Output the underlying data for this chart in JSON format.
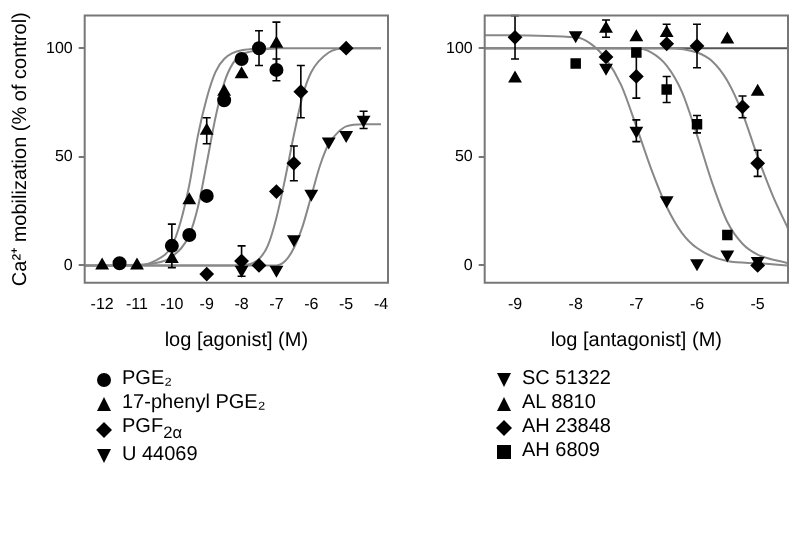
{
  "chart_data": [
    {
      "type": "scatter",
      "xlabel": "log [agonist] (M)",
      "ylabel": "Ca²⁺ mobilization (% of control)",
      "xlim": [
        -12.5,
        -3.8
      ],
      "xticks": [
        -12,
        -11,
        -10,
        -9,
        -8,
        -7,
        -6,
        -5,
        -4
      ],
      "ylim": [
        -8,
        115
      ],
      "yticks": [
        0,
        50,
        100
      ],
      "grid": false,
      "legend": "bottom",
      "series": [
        {
          "name": "PGE₂",
          "color": "#000000",
          "marker": "circle",
          "x": [
            -11.5,
            -10,
            -9.5,
            -9,
            -8.5,
            -8,
            -7.5,
            -7
          ],
          "values": [
            1,
            9,
            14,
            32,
            76,
            95,
            100,
            90
          ],
          "errors": [
            null,
            10,
            null,
            null,
            null,
            null,
            8,
            5
          ]
        },
        {
          "name": "17-phenyl PGE₂",
          "color": "#000000",
          "marker": "triangle",
          "x": [
            -12,
            -11,
            -10,
            -9.5,
            -9,
            -8.5,
            -8,
            -7
          ],
          "values": [
            0,
            0,
            3,
            30,
            62,
            80,
            88,
            102
          ],
          "errors": [
            null,
            null,
            null,
            null,
            6,
            null,
            null,
            10
          ]
        },
        {
          "name": "PGF$_{2α}$",
          "color": "#000000",
          "marker": "diamond",
          "x": [
            -9,
            -8,
            -7.5,
            -7,
            -6.5,
            -6.3,
            -5
          ],
          "values": [
            -4,
            2,
            0,
            34,
            47,
            80,
            100
          ],
          "errors": [
            null,
            7,
            null,
            null,
            8,
            12,
            null
          ]
        },
        {
          "name": "U 44069",
          "color": "#000000",
          "marker": "triangle-down",
          "x": [
            -8,
            -7,
            -6.5,
            -6,
            -5.5,
            -5,
            -4.5
          ],
          "values": [
            -2,
            -2,
            12,
            33,
            57,
            60,
            67
          ],
          "errors": [
            null,
            null,
            null,
            null,
            null,
            null,
            4
          ]
        },
        {
          "type": "line",
          "color": "#888888",
          "marker": "none",
          "x": [
            -12.5,
            -11,
            -10.5,
            -10,
            -9.75,
            -9.5,
            -9.25,
            -9,
            -8.75,
            -8.5,
            -8,
            -7
          ],
          "values": [
            0,
            0,
            2,
            9,
            20,
            37,
            60,
            77,
            89,
            95,
            99,
            100
          ]
        },
        {
          "type": "line",
          "color": "#888888",
          "marker": "none",
          "x": [
            -11.5,
            -10.5,
            -10,
            -9.5,
            -9.25,
            -9,
            -8.75,
            -8.5,
            -8.25,
            -8,
            -7.5,
            -7,
            -4
          ],
          "values": [
            0,
            1,
            4,
            14,
            27,
            47,
            68,
            84,
            93,
            97,
            99,
            100,
            100
          ]
        },
        {
          "type": "line",
          "color": "#888888",
          "marker": "none",
          "x": [
            -12.5,
            -8,
            -7.5,
            -7.25,
            -7,
            -6.75,
            -6.5,
            -6.25,
            -6,
            -5.5,
            -5,
            -4
          ],
          "values": [
            0,
            0,
            3,
            9,
            22,
            40,
            60,
            78,
            89,
            98,
            100,
            100
          ]
        },
        {
          "type": "line",
          "color": "#888888",
          "marker": "none",
          "x": [
            -12.5,
            -7,
            -6.75,
            -6.5,
            -6.25,
            -6,
            -5.75,
            -5.5,
            -5.25,
            -5,
            -4.5,
            -4
          ],
          "values": [
            0,
            0,
            2,
            8,
            18,
            32,
            46,
            56,
            61,
            64,
            65,
            65
          ]
        }
      ]
    },
    {
      "type": "scatter",
      "xlabel": "log [antagonist] (M)",
      "xlim": [
        -9.5,
        -4.5
      ],
      "xticks": [
        -9,
        -8,
        -7,
        -6,
        -5
      ],
      "ylim": [
        -8,
        115
      ],
      "yticks": [
        0,
        50,
        100
      ],
      "grid": false,
      "legend": "bottom",
      "ref_lines": [
        {
          "axis": "y",
          "value": 100,
          "color": "#555555"
        }
      ],
      "series": [
        {
          "name": "SC 51322",
          "color": "#000000",
          "marker": "triangle-down",
          "x": [
            -8,
            -7.5,
            -7,
            -6.5,
            -6,
            -5.5,
            -5
          ],
          "values": [
            106,
            91,
            62,
            30,
            1,
            5,
            2
          ],
          "errors": [
            null,
            null,
            5,
            null,
            null,
            null,
            null
          ]
        },
        {
          "name": "AL 8810",
          "color": "#000000",
          "marker": "triangle",
          "x": [
            -9,
            -7.5,
            -7,
            -6.5,
            -5.5,
            -5
          ],
          "values": [
            86,
            109,
            105,
            107,
            104,
            80
          ],
          "errors": [
            null,
            4,
            null,
            4,
            null,
            null
          ]
        },
        {
          "name": "AH 23848",
          "color": "#000000",
          "marker": "diamond",
          "x": [
            -9,
            -7.5,
            -7,
            -6.5,
            -6,
            -5.25,
            -5,
            -5
          ],
          "values": [
            105,
            96,
            87,
            102,
            101,
            73,
            47,
            0
          ],
          "errors": [
            10,
            null,
            10,
            null,
            10,
            5,
            6,
            null
          ]
        },
        {
          "name": "AH 6809",
          "color": "#000000",
          "marker": "square",
          "x": [
            -8,
            -7,
            -6.5,
            -6,
            -5.5
          ],
          "values": [
            93,
            98,
            81,
            65,
            14
          ],
          "errors": [
            null,
            null,
            6,
            4,
            null
          ]
        },
        {
          "type": "line",
          "color": "#888888",
          "marker": "none",
          "x": [
            -9.5,
            -8,
            -7.75,
            -7.5,
            -7.25,
            -7,
            -6.75,
            -6.5,
            -6.25,
            -6,
            -5.5,
            -5,
            -4.5
          ],
          "values": [
            106,
            105,
            102,
            95,
            83,
            64,
            44,
            27,
            15,
            8,
            2,
            1,
            0
          ]
        },
        {
          "type": "line",
          "color": "#888888",
          "marker": "none",
          "x": [
            -9.5,
            -7,
            -6.75,
            -6.5,
            -6.25,
            -6,
            -5.75,
            -5.5,
            -5.25,
            -5,
            -4.5
          ],
          "values": [
            100,
            100,
            98,
            92,
            80,
            60,
            38,
            20,
            10,
            5,
            1
          ]
        },
        {
          "type": "line",
          "color": "#888888",
          "marker": "none",
          "x": [
            -9.5,
            -6.5,
            -6,
            -5.75,
            -5.5,
            -5.25,
            -5,
            -4.75,
            -4.5
          ],
          "values": [
            100,
            100,
            98,
            94,
            85,
            70,
            50,
            32,
            17
          ]
        }
      ]
    }
  ]
}
